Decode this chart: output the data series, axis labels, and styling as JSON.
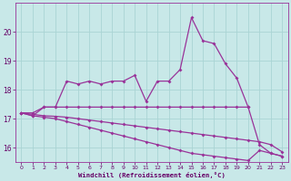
{
  "x": [
    0,
    1,
    2,
    3,
    4,
    5,
    6,
    7,
    8,
    9,
    10,
    11,
    12,
    13,
    14,
    15,
    16,
    17,
    18,
    19,
    20,
    21,
    22,
    23
  ],
  "line1": [
    17.2,
    17.1,
    17.4,
    17.4,
    18.3,
    18.2,
    18.3,
    18.2,
    18.3,
    18.3,
    18.5,
    17.6,
    18.3,
    18.3,
    18.7,
    20.5,
    19.7,
    19.6,
    18.9,
    18.4,
    17.4,
    16.1,
    15.8,
    15.7
  ],
  "line2_x": [
    0,
    1,
    2,
    3,
    4,
    5,
    6,
    7,
    8,
    9,
    10,
    11,
    12,
    13,
    14,
    15,
    16,
    17,
    18,
    19,
    20
  ],
  "line2_y": [
    17.2,
    17.2,
    17.4,
    17.4,
    17.4,
    17.4,
    17.4,
    17.4,
    17.4,
    17.4,
    17.4,
    17.4,
    17.4,
    17.4,
    17.4,
    17.4,
    17.4,
    17.4,
    17.4,
    17.4,
    17.4
  ],
  "line3": [
    17.2,
    17.15,
    17.1,
    17.08,
    17.05,
    17.0,
    16.95,
    16.9,
    16.85,
    16.8,
    16.75,
    16.7,
    16.65,
    16.6,
    16.55,
    16.5,
    16.45,
    16.4,
    16.35,
    16.3,
    16.25,
    16.2,
    16.1,
    15.85
  ],
  "line4": [
    17.2,
    17.1,
    17.05,
    17.0,
    16.9,
    16.8,
    16.7,
    16.6,
    16.5,
    16.4,
    16.3,
    16.2,
    16.1,
    16.0,
    15.9,
    15.8,
    15.75,
    15.7,
    15.65,
    15.6,
    15.55,
    15.9,
    15.8,
    15.7
  ],
  "color": "#993399",
  "bg_color": "#c8e8e8",
  "grid_color": "#aad4d4",
  "xlabel": "Windchill (Refroidissement éolien,°C)",
  "ylim": [
    15.5,
    21.0
  ],
  "xlim": [
    -0.5,
    23.5
  ],
  "yticks": [
    16,
    17,
    18,
    19,
    20
  ],
  "xticks": [
    0,
    1,
    2,
    3,
    4,
    5,
    6,
    7,
    8,
    9,
    10,
    11,
    12,
    13,
    14,
    15,
    16,
    17,
    18,
    19,
    20,
    21,
    22,
    23
  ]
}
